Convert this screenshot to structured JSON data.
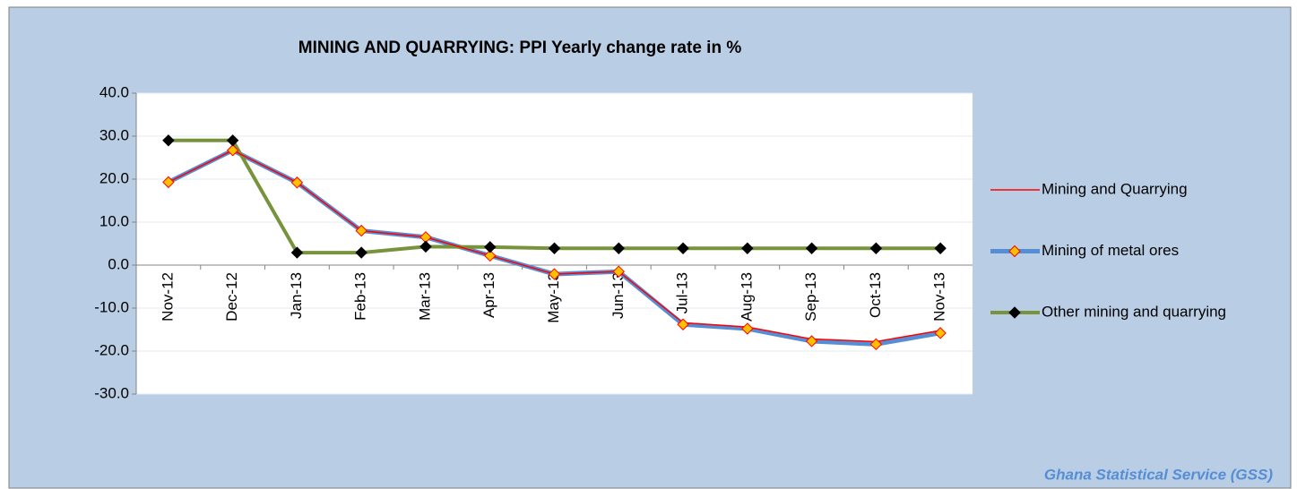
{
  "chart_data": {
    "type": "line",
    "title": "MINING AND QUARRYING:  PPI  Yearly change rate  in %",
    "source": "Ghana Statistical Service (GSS)",
    "categories": [
      "Nov-12",
      "Dec-12",
      "Jan-13",
      "Feb-13",
      "Mar-13",
      "Apr-13",
      "May-13",
      "Jun-13",
      "Jul-13",
      "Aug-13",
      "Sep-13",
      "Oct-13",
      "Nov-13"
    ],
    "series": [
      {
        "name": "Mining and Quarrying",
        "color": "#ff0000",
        "values": [
          19.3,
          26.7,
          19.2,
          8.0,
          6.5,
          2.2,
          -2.1,
          -1.5,
          -13.4,
          -14.4,
          -17.2,
          -17.8,
          -15.2
        ]
      },
      {
        "name": "Mining of metal ores",
        "color": "#558ed5",
        "values": [
          19.3,
          26.7,
          19.2,
          8.0,
          6.5,
          2.2,
          -2.1,
          -1.5,
          -13.8,
          -14.8,
          -17.7,
          -18.4,
          -15.8
        ]
      },
      {
        "name": "Other mining and quarrying",
        "color": "#77933c",
        "values": [
          29.0,
          29.0,
          2.9,
          2.9,
          4.3,
          4.2,
          3.9,
          3.9,
          3.9,
          3.9,
          3.9,
          3.9,
          3.9
        ]
      }
    ],
    "ylim": [
      -30,
      40
    ],
    "yticks": [
      {
        "value": -30,
        "label": "-30.0"
      },
      {
        "value": -20,
        "label": "-20.0"
      },
      {
        "value": -10,
        "label": "-10.0"
      },
      {
        "value": 0,
        "label": "0.0"
      },
      {
        "value": 10,
        "label": "10.0"
      },
      {
        "value": 20,
        "label": "20.0"
      },
      {
        "value": 30,
        "label": "30.0"
      },
      {
        "value": 40,
        "label": "40.0"
      }
    ],
    "grid": true,
    "legend": "right"
  }
}
